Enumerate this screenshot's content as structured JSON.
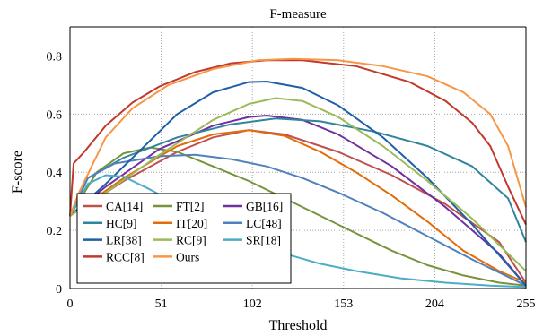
{
  "chart_data": {
    "type": "line",
    "title": "F-measure",
    "xlabel": "Threshold",
    "ylabel": "F-score",
    "xlim": [
      0,
      255
    ],
    "ylim": [
      0,
      0.9
    ],
    "xticks": [
      0,
      51,
      102,
      153,
      204,
      255
    ],
    "yticks": [
      0,
      0.2,
      0.4,
      0.6,
      0.8
    ],
    "ytick_labels": [
      "0",
      "0.2",
      "0.4",
      "0.6",
      "0.8"
    ],
    "grid": true,
    "legend_position": "lower-left",
    "series": [
      {
        "name": "CA[14]",
        "color": "#c0504d",
        "points": [
          [
            0,
            0.25
          ],
          [
            30,
            0.37
          ],
          [
            60,
            0.47
          ],
          [
            80,
            0.52
          ],
          [
            100,
            0.545
          ],
          [
            120,
            0.53
          ],
          [
            150,
            0.47
          ],
          [
            180,
            0.39
          ],
          [
            210,
            0.29
          ],
          [
            240,
            0.16
          ],
          [
            255,
            0.02
          ]
        ]
      },
      {
        "name": "FT[2]",
        "color": "#77933c",
        "points": [
          [
            0,
            0.25
          ],
          [
            15,
            0.4
          ],
          [
            30,
            0.465
          ],
          [
            45,
            0.485
          ],
          [
            60,
            0.47
          ],
          [
            80,
            0.42
          ],
          [
            100,
            0.37
          ],
          [
            120,
            0.31
          ],
          [
            140,
            0.25
          ],
          [
            160,
            0.19
          ],
          [
            180,
            0.13
          ],
          [
            200,
            0.08
          ],
          [
            220,
            0.045
          ],
          [
            240,
            0.02
          ],
          [
            255,
            0.01
          ]
        ]
      },
      {
        "name": "GB[16]",
        "color": "#7030a0",
        "points": [
          [
            0,
            0.25
          ],
          [
            20,
            0.35
          ],
          [
            50,
            0.48
          ],
          [
            80,
            0.56
          ],
          [
            100,
            0.59
          ],
          [
            110,
            0.595
          ],
          [
            130,
            0.58
          ],
          [
            150,
            0.53
          ],
          [
            180,
            0.42
          ],
          [
            210,
            0.28
          ],
          [
            240,
            0.12
          ],
          [
            255,
            0.01
          ]
        ]
      },
      {
        "name": "HC[9]",
        "color": "#31849b",
        "points": [
          [
            0,
            0.25
          ],
          [
            10,
            0.38
          ],
          [
            30,
            0.45
          ],
          [
            60,
            0.52
          ],
          [
            90,
            0.565
          ],
          [
            115,
            0.585
          ],
          [
            140,
            0.575
          ],
          [
            170,
            0.54
          ],
          [
            200,
            0.49
          ],
          [
            225,
            0.42
          ],
          [
            245,
            0.31
          ],
          [
            255,
            0.16
          ]
        ]
      },
      {
        "name": "IT[20]",
        "color": "#e36c09",
        "points": [
          [
            0,
            0.25
          ],
          [
            30,
            0.38
          ],
          [
            60,
            0.49
          ],
          [
            80,
            0.53
          ],
          [
            100,
            0.545
          ],
          [
            120,
            0.525
          ],
          [
            140,
            0.47
          ],
          [
            160,
            0.4
          ],
          [
            180,
            0.32
          ],
          [
            200,
            0.23
          ],
          [
            220,
            0.13
          ],
          [
            240,
            0.06
          ],
          [
            255,
            0.02
          ]
        ]
      },
      {
        "name": "LC[48]",
        "color": "#4f81bd",
        "points": [
          [
            0,
            0.25
          ],
          [
            10,
            0.38
          ],
          [
            25,
            0.43
          ],
          [
            50,
            0.455
          ],
          [
            70,
            0.46
          ],
          [
            90,
            0.445
          ],
          [
            110,
            0.42
          ],
          [
            130,
            0.38
          ],
          [
            150,
            0.33
          ],
          [
            175,
            0.26
          ],
          [
            200,
            0.18
          ],
          [
            225,
            0.1
          ],
          [
            245,
            0.04
          ],
          [
            255,
            0.01
          ]
        ]
      },
      {
        "name": "LR[38]",
        "color": "#1f5fa6",
        "points": [
          [
            0,
            0.25
          ],
          [
            20,
            0.36
          ],
          [
            40,
            0.48
          ],
          [
            60,
            0.6
          ],
          [
            80,
            0.675
          ],
          [
            100,
            0.71
          ],
          [
            110,
            0.712
          ],
          [
            130,
            0.69
          ],
          [
            150,
            0.63
          ],
          [
            175,
            0.52
          ],
          [
            200,
            0.38
          ],
          [
            225,
            0.22
          ],
          [
            245,
            0.08
          ],
          [
            255,
            0.01
          ]
        ]
      },
      {
        "name": "RC[9]",
        "color": "#9bbb59",
        "points": [
          [
            0,
            0.25
          ],
          [
            20,
            0.33
          ],
          [
            50,
            0.46
          ],
          [
            80,
            0.58
          ],
          [
            100,
            0.635
          ],
          [
            115,
            0.655
          ],
          [
            130,
            0.645
          ],
          [
            150,
            0.59
          ],
          [
            175,
            0.49
          ],
          [
            200,
            0.37
          ],
          [
            225,
            0.24
          ],
          [
            245,
            0.12
          ],
          [
            255,
            0.06
          ]
        ]
      },
      {
        "name": "SR[18]",
        "color": "#4bacc6",
        "points": [
          [
            0,
            0.25
          ],
          [
            10,
            0.36
          ],
          [
            20,
            0.39
          ],
          [
            30,
            0.385
          ],
          [
            45,
            0.34
          ],
          [
            60,
            0.29
          ],
          [
            80,
            0.23
          ],
          [
            100,
            0.17
          ],
          [
            120,
            0.12
          ],
          [
            140,
            0.085
          ],
          [
            160,
            0.06
          ],
          [
            185,
            0.035
          ],
          [
            210,
            0.02
          ],
          [
            235,
            0.01
          ],
          [
            255,
            0.005
          ]
        ]
      },
      {
        "name": "RCC[8]",
        "color": "#c0392b",
        "points": [
          [
            0,
            0.25
          ],
          [
            2,
            0.43
          ],
          [
            8,
            0.47
          ],
          [
            20,
            0.56
          ],
          [
            35,
            0.64
          ],
          [
            50,
            0.695
          ],
          [
            70,
            0.745
          ],
          [
            90,
            0.775
          ],
          [
            110,
            0.785
          ],
          [
            130,
            0.785
          ],
          [
            160,
            0.765
          ],
          [
            190,
            0.71
          ],
          [
            210,
            0.645
          ],
          [
            225,
            0.57
          ],
          [
            235,
            0.49
          ],
          [
            245,
            0.35
          ],
          [
            255,
            0.22
          ]
        ]
      },
      {
        "name": "Ours",
        "color": "#f79646",
        "points": [
          [
            0,
            0.25
          ],
          [
            5,
            0.33
          ],
          [
            20,
            0.52
          ],
          [
            35,
            0.62
          ],
          [
            55,
            0.7
          ],
          [
            80,
            0.755
          ],
          [
            105,
            0.785
          ],
          [
            125,
            0.79
          ],
          [
            150,
            0.785
          ],
          [
            175,
            0.765
          ],
          [
            200,
            0.73
          ],
          [
            220,
            0.675
          ],
          [
            235,
            0.6
          ],
          [
            245,
            0.49
          ],
          [
            255,
            0.28
          ]
        ]
      }
    ]
  }
}
